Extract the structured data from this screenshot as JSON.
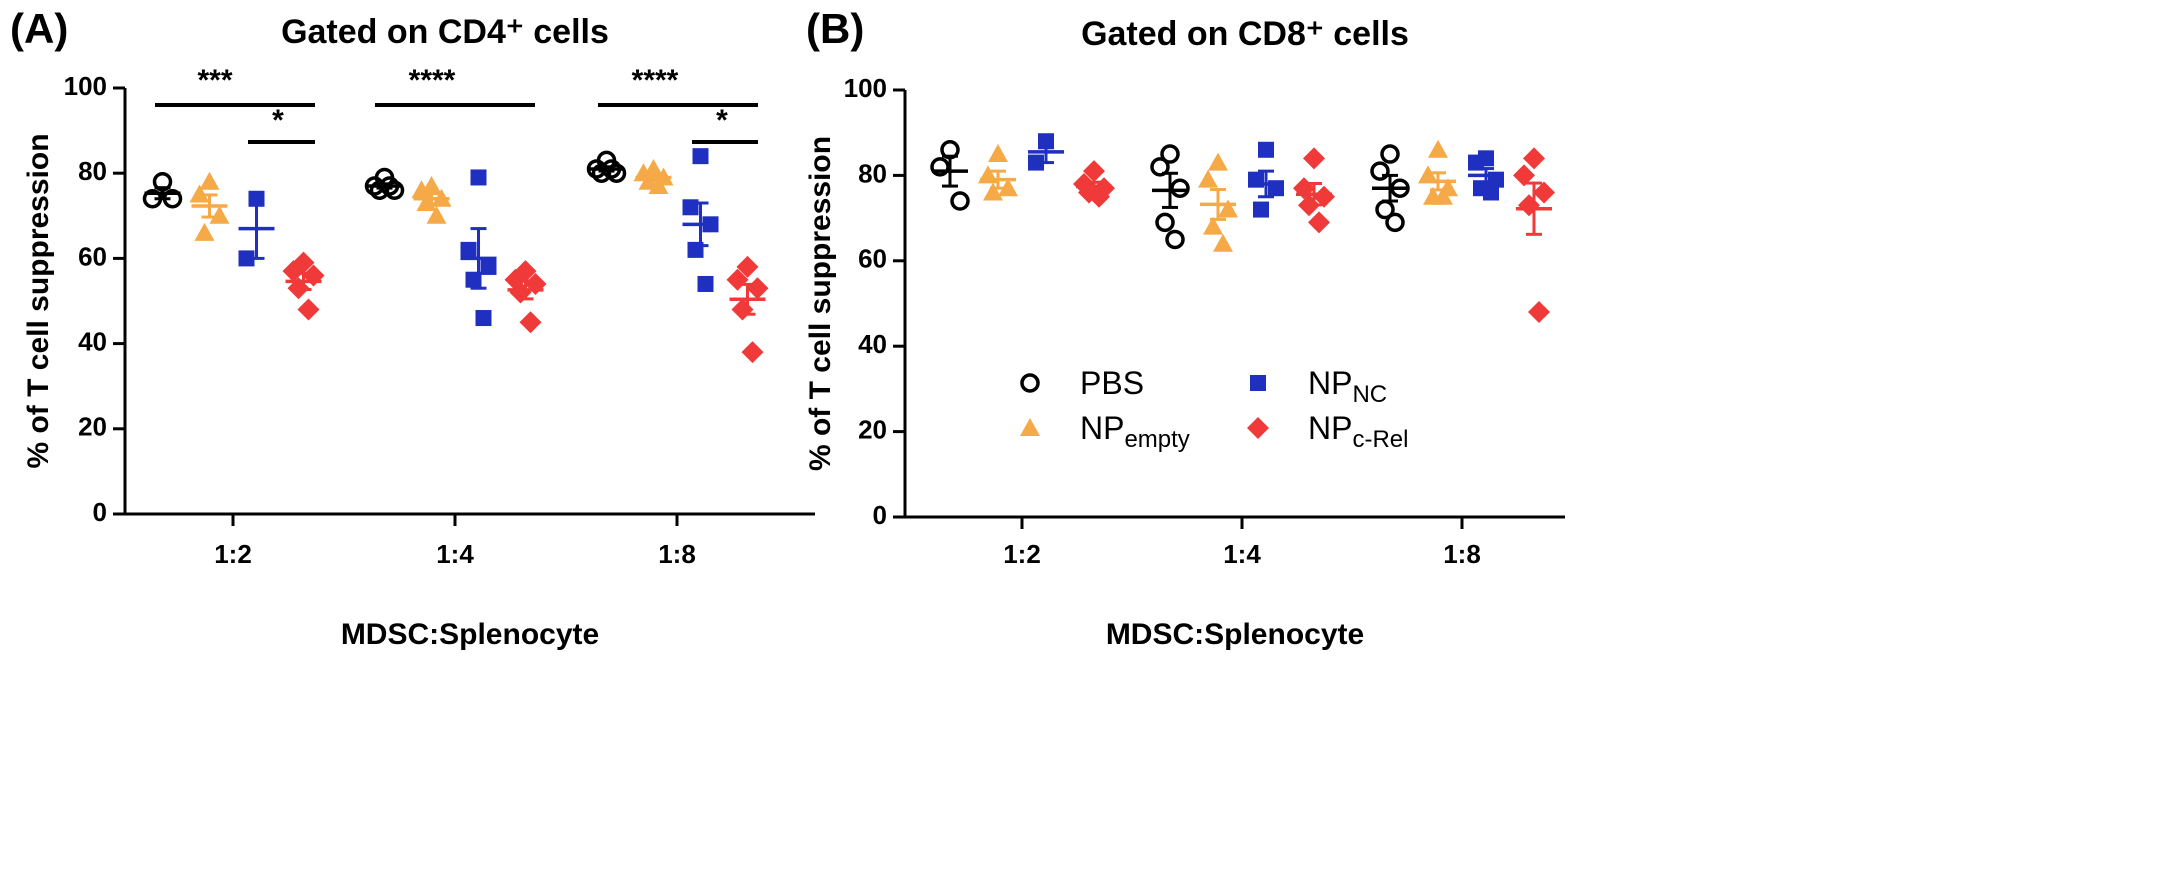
{
  "chart_data": [
    {
      "type": "scatter",
      "panel_label": "(A)",
      "title": "Gated on CD4⁺ cells",
      "xlabel": "MDSC:Splenocyte",
      "ylabel": "% of T cell suppression",
      "categories": [
        "1:2",
        "1:4",
        "1:8"
      ],
      "ylim": [
        0,
        100
      ],
      "yticks": [
        0,
        20,
        40,
        60,
        80,
        100
      ],
      "series": [
        {
          "marker": "circle-open",
          "color": "#000000",
          "values": [
            [
              78,
              74,
              74
            ],
            [
              79,
              77,
              76,
              76,
              77
            ],
            [
              83,
              81,
              80,
              80,
              81
            ]
          ],
          "mean": [
            75.3,
            77,
            81
          ],
          "sem": [
            1.3,
            0.5,
            0.5
          ]
        },
        {
          "marker": "triangle",
          "color": "#f5a947",
          "values": [
            [
              78,
              75,
              70,
              66
            ],
            [
              77,
              76,
              74,
              73,
              70
            ],
            [
              81,
              80,
              79,
              78,
              77
            ]
          ],
          "mean": [
            72.3,
            74,
            79
          ],
          "sem": [
            2.6,
            1.2,
            0.7
          ]
        },
        {
          "marker": "square",
          "color": "#1f2fbf",
          "values": [
            [
              74,
              60
            ],
            [
              79,
              62,
              58,
              55,
              46
            ],
            [
              84,
              72,
              68,
              62,
              54
            ]
          ],
          "mean": [
            67,
            60,
            68
          ],
          "sem": [
            7,
            7,
            5
          ]
        },
        {
          "marker": "diamond",
          "color": "#f03a3a",
          "values": [
            [
              59,
              57,
              56,
              53,
              48
            ],
            [
              57,
              55,
              54,
              52,
              45
            ],
            [
              58,
              55,
              53,
              48,
              38
            ]
          ],
          "mean": [
            54.6,
            52.6,
            50.4
          ],
          "sem": [
            1.9,
            2.1,
            3.5
          ]
        }
      ],
      "annotations": [
        "***",
        "*",
        "****",
        "****",
        "*"
      ]
    },
    {
      "type": "scatter",
      "panel_label": "(B)",
      "title": "Gated on CD8⁺ cells",
      "xlabel": "MDSC:Splenocyte",
      "ylabel": "% of T cell suppression",
      "categories": [
        "1:2",
        "1:4",
        "1:8"
      ],
      "ylim": [
        0,
        100
      ],
      "yticks": [
        0,
        20,
        40,
        60,
        80,
        100
      ],
      "legend": "center",
      "series": [
        {
          "name": "PBS",
          "marker": "circle-open",
          "color": "#000000",
          "values": [
            [
              86,
              82,
              74
            ],
            [
              85,
              82,
              77,
              69,
              65
            ],
            [
              85,
              81,
              77,
              72,
              69
            ]
          ],
          "mean": [
            81,
            76.5,
            77
          ],
          "sem": [
            3.5,
            4,
            3
          ]
        },
        {
          "name": "NP",
          "name_sub": "empty",
          "marker": "triangle",
          "color": "#f5a947",
          "values": [
            [
              85,
              80,
              77,
              76
            ],
            [
              83,
              79,
              72,
              68,
              64
            ],
            [
              86,
              80,
              77,
              75,
              75
            ]
          ],
          "mean": [
            79,
            73.2,
            78.6
          ],
          "sem": [
            2,
            3.5,
            2
          ]
        },
        {
          "name": "NP",
          "name_sub": "NC",
          "marker": "square",
          "color": "#1f2fbf",
          "values": [
            [
              88,
              83
            ],
            [
              86,
              79,
              77,
              72
            ],
            [
              84,
              83,
              79,
              77,
              76
            ]
          ],
          "mean": [
            85.5,
            78,
            80
          ],
          "sem": [
            2.5,
            3,
            1.6
          ]
        },
        {
          "name": "NP",
          "name_sub": "c-Rel",
          "marker": "diamond",
          "color": "#f03a3a",
          "values": [
            [
              81,
              78,
              77,
              76,
              75
            ],
            [
              84,
              77,
              75,
              73,
              69
            ],
            [
              84,
              80,
              76,
              73,
              48
            ]
          ],
          "mean": [
            77.4,
            75.6,
            72.2
          ],
          "sem": [
            1,
            2.5,
            6
          ]
        }
      ]
    }
  ]
}
